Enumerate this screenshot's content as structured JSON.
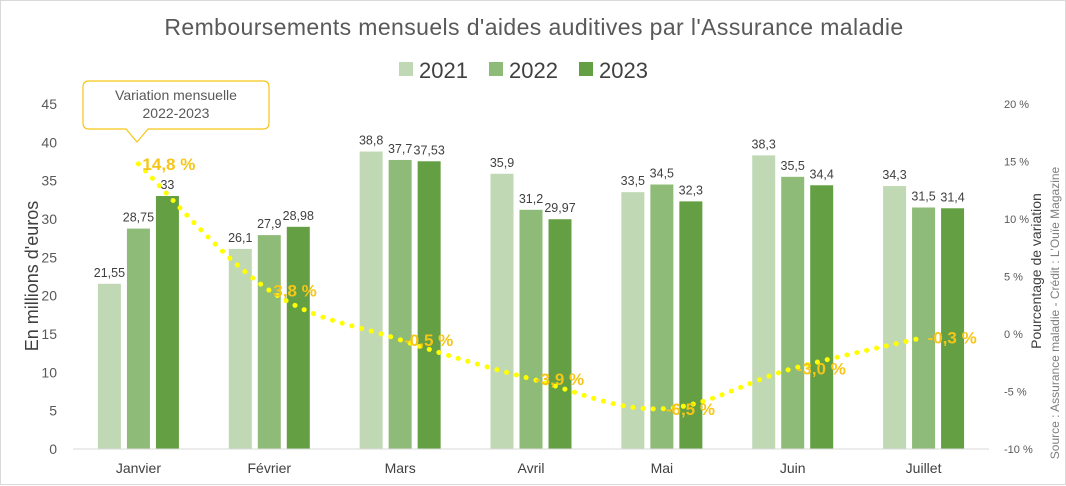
{
  "chart_data": {
    "type": "bar",
    "title": "Remboursements mensuels d'aides auditives par l'Assurance maladie",
    "categories": [
      "Janvier",
      "Février",
      "Mars",
      "Avril",
      "Mai",
      "Juin",
      "Juillet"
    ],
    "series": [
      {
        "name": "2021",
        "color": "#c0d9b4",
        "values": [
          21.55,
          26.1,
          38.8,
          35.9,
          33.5,
          38.3,
          34.3
        ],
        "labels": [
          "21,55",
          "26,1",
          "38,8",
          "35,9",
          "33,5",
          "38,3",
          "34,3"
        ]
      },
      {
        "name": "2022",
        "color": "#8fbb79",
        "values": [
          28.75,
          27.9,
          37.7,
          31.2,
          34.5,
          35.5,
          31.5
        ],
        "labels": [
          "28,75",
          "27,9",
          "37,7",
          "31,2",
          "34,5",
          "35,5",
          "31,5"
        ]
      },
      {
        "name": "2023",
        "color": "#64a043",
        "values": [
          33,
          28.98,
          37.53,
          29.97,
          32.3,
          34.4,
          31.4
        ],
        "labels": [
          "33",
          "28,98",
          "37,53",
          "29,97",
          "32,3",
          "34,4",
          "31,4"
        ]
      }
    ],
    "ylabel": "En millions d'euros",
    "ylim": [
      0,
      45
    ],
    "yticks": [
      0,
      5,
      10,
      15,
      20,
      25,
      30,
      35,
      40,
      45
    ],
    "secondary_axis": {
      "label": "Pourcentage de variation",
      "lim": [
        -10,
        20
      ],
      "ticks": [
        "-10 %",
        "-5 %",
        "0 %",
        "5 %",
        "10 %",
        "15 %",
        "20 %"
      ],
      "tick_values": [
        -10,
        -5,
        0,
        5,
        10,
        15,
        20
      ]
    },
    "variation_series": {
      "name": "Variation mensuelle 2022-2023",
      "color": "#ffff00",
      "label_color": "#f5c518",
      "values": [
        14.8,
        3.8,
        -0.5,
        -3.9,
        -6.5,
        -3.0,
        -0.3
      ],
      "labels": [
        "14,8 %",
        "3,8 %",
        "-0,5 %",
        "-3,9 %",
        "-6,5 %",
        "-3,0 %",
        "-0,3 %"
      ]
    },
    "callout": {
      "line1": "Variation mensuelle",
      "line2": "2022-2023"
    },
    "legend_position": "top-center",
    "grid": false,
    "source": "Source : Assurance maladie - Crédit : L'Ouïe Magazine"
  }
}
